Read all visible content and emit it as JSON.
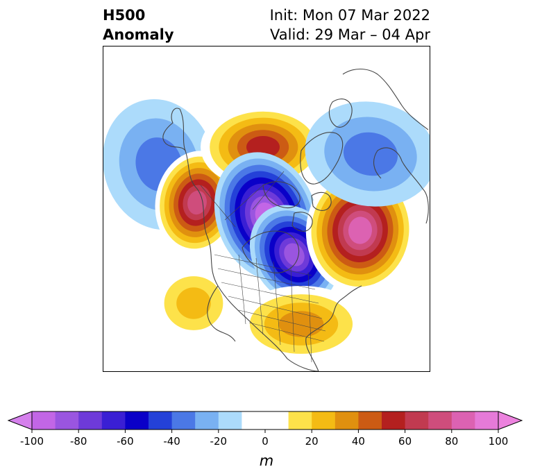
{
  "title": {
    "line1_left": "H500",
    "line2_left": "Anomaly",
    "line1_right": "Init: Mon 07 Mar 2022",
    "line2_right": "Valid: 29 Mar – 04 Apr"
  },
  "colorbar": {
    "unit_label": "m",
    "min": -100,
    "max": 100,
    "levels": [
      -100,
      -90,
      -80,
      -70,
      -60,
      -50,
      -40,
      -30,
      -20,
      -10,
      10,
      20,
      30,
      40,
      50,
      60,
      70,
      80,
      90,
      100
    ],
    "tick_labels": [
      "-100",
      "-80",
      "-60",
      "-40",
      "-20",
      "0",
      "20",
      "40",
      "60",
      "80",
      "100"
    ],
    "tick_values": [
      -100,
      -80,
      -60,
      -40,
      -20,
      0,
      20,
      40,
      60,
      80,
      100
    ],
    "extend": "both",
    "colors": [
      "#c266e6",
      "#9a55e0",
      "#6e3ad9",
      "#3a1fd4",
      "#0a00c8",
      "#2441d8",
      "#4b78e6",
      "#79b1f2",
      "#acdbfb",
      "#ffffff",
      "#ffffff",
      "#fde24a",
      "#f4bb14",
      "#e0900f",
      "#cc5b14",
      "#b4201f",
      "#c13a50",
      "#cf4d7c",
      "#dc62b2",
      "#e67ad8"
    ],
    "extend_low_color": "#d580ec",
    "extend_high_color": "#ec82de"
  },
  "map": {
    "features": [
      {
        "name": "aleutian-negative",
        "sign": "negative",
        "peak_value": -40
      },
      {
        "name": "alaska-positive",
        "sign": "positive",
        "peak_value": 90
      },
      {
        "name": "greenland-positive",
        "sign": "positive",
        "peak_value": 70
      },
      {
        "name": "hudson-bay-negative",
        "sign": "negative",
        "peak_value": -100
      },
      {
        "name": "arctic-canada-negative",
        "sign": "negative",
        "peak_value": -90
      },
      {
        "name": "europe-positive",
        "sign": "positive",
        "peak_value": 100
      },
      {
        "name": "siberia-negative",
        "sign": "negative",
        "peak_value": -40
      },
      {
        "name": "western-us-positive",
        "sign": "positive",
        "peak_value": 40
      },
      {
        "name": "eastern-us-positive",
        "sign": "positive",
        "peak_value": 50
      }
    ]
  }
}
